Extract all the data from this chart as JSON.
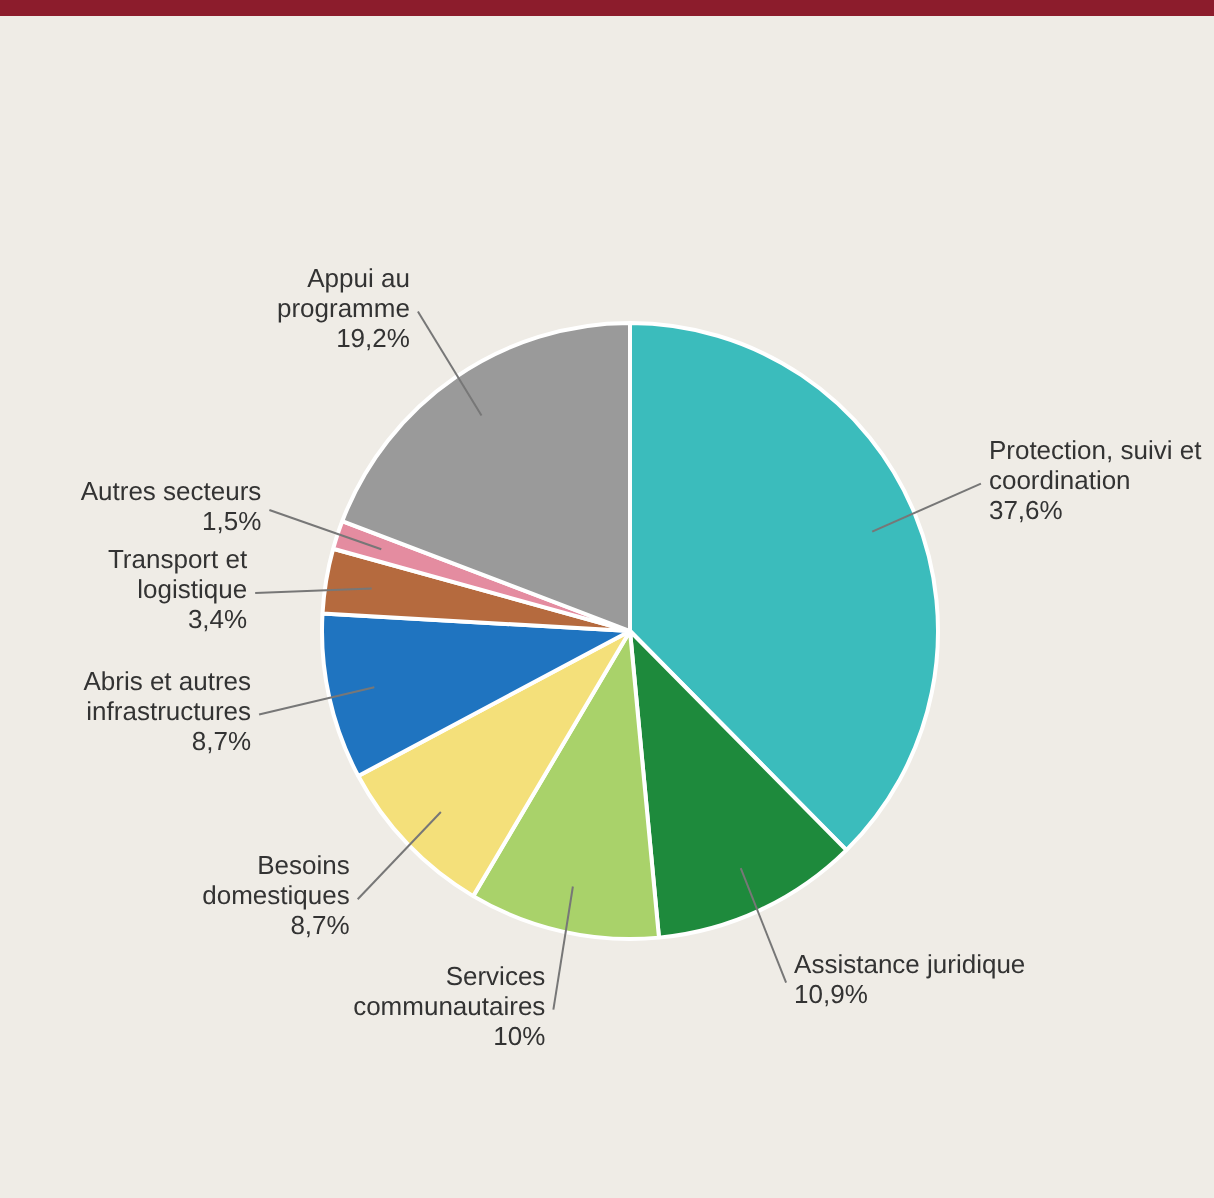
{
  "chart_data": {
    "type": "pie",
    "categories": [
      "Protection, suivi et coordination",
      "Assistance juridique",
      "Services communautaires",
      "Besoins domestiques",
      "Abris et autres infrastructures",
      "Transport et logistique",
      "Autres secteurs",
      "Appui au programme"
    ],
    "values": [
      37.6,
      10.9,
      10,
      8.7,
      8.7,
      3.4,
      1.5,
      19.2
    ],
    "colors": [
      "#3bbcbc",
      "#1e8a3c",
      "#a9d26a",
      "#f4e07a",
      "#1f74c0",
      "#b56a3e",
      "#e48ca0",
      "#9a9a9a"
    ],
    "value_labels": [
      "37,6%",
      "10,9%",
      "10%",
      "8,7%",
      "8,7%",
      "3,4%",
      "1,5%",
      "19,2%"
    ]
  }
}
